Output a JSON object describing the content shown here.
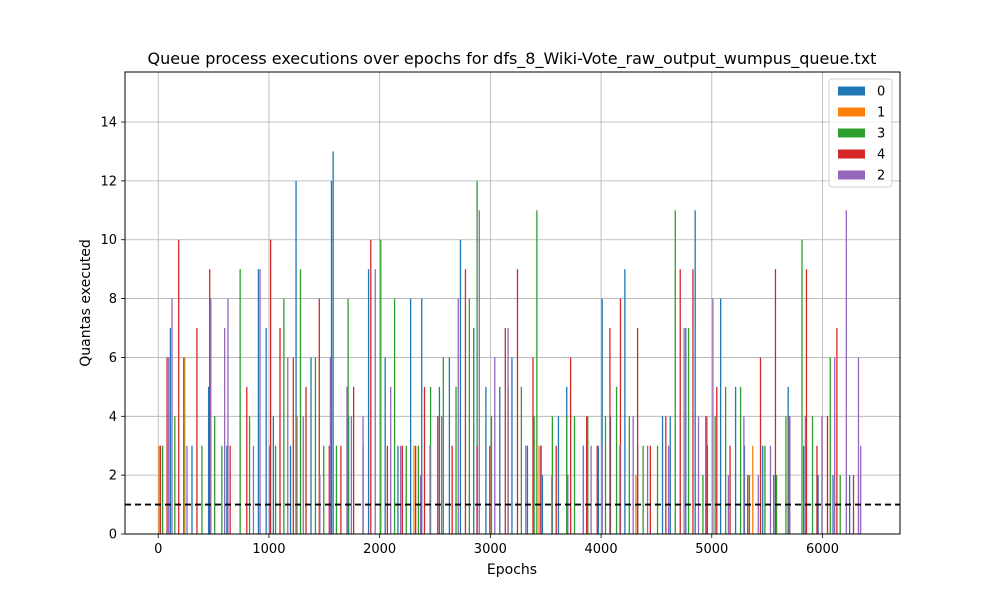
{
  "chart_data": {
    "type": "bar",
    "title": "Queue process executions over epochs for dfs_8_Wiki-Vote_raw_output_wumpus_queue.txt",
    "xlabel": "Epochs",
    "ylabel": "Quantas executed",
    "xlim": [
      -300,
      6700
    ],
    "ylim": [
      0,
      15.7
    ],
    "xticks": [
      0,
      1000,
      2000,
      3000,
      4000,
      5000,
      6000
    ],
    "yticks": [
      0,
      2,
      4,
      6,
      8,
      10,
      12,
      14
    ],
    "grid": true,
    "legend_position": "top-right",
    "reference_line": {
      "y": 1,
      "style": "dashed",
      "color": "#000000"
    },
    "series": [
      {
        "name": "0",
        "color": "#1f77b4",
        "points": [
          [
            110,
            7
          ],
          [
            305,
            3
          ],
          [
            455,
            5
          ],
          [
            620,
            3
          ],
          [
            905,
            9
          ],
          [
            975,
            7
          ],
          [
            1040,
            4
          ],
          [
            1195,
            3
          ],
          [
            1245,
            12
          ],
          [
            1380,
            6
          ],
          [
            1565,
            12
          ],
          [
            1580,
            13
          ],
          [
            1720,
            4
          ],
          [
            1900,
            9
          ],
          [
            2050,
            6
          ],
          [
            2165,
            3
          ],
          [
            2280,
            8
          ],
          [
            2380,
            8
          ],
          [
            2540,
            5
          ],
          [
            2630,
            6
          ],
          [
            2730,
            10
          ],
          [
            2850,
            7
          ],
          [
            2960,
            5
          ],
          [
            3085,
            5
          ],
          [
            3195,
            6
          ],
          [
            3335,
            3
          ],
          [
            3470,
            2
          ],
          [
            3615,
            4
          ],
          [
            3690,
            5
          ],
          [
            3840,
            3
          ],
          [
            3975,
            3
          ],
          [
            4010,
            8
          ],
          [
            4085,
            4
          ],
          [
            4215,
            9
          ],
          [
            4330,
            3
          ],
          [
            4555,
            4
          ],
          [
            4625,
            4
          ],
          [
            4765,
            7
          ],
          [
            4850,
            11
          ],
          [
            4960,
            3
          ],
          [
            5080,
            8
          ],
          [
            5215,
            5
          ],
          [
            5295,
            3
          ],
          [
            5460,
            3
          ],
          [
            5560,
            2
          ],
          [
            5690,
            5
          ],
          [
            5830,
            3
          ],
          [
            5960,
            2
          ],
          [
            6095,
            2
          ],
          [
            6245,
            2
          ]
        ]
      },
      {
        "name": "1",
        "color": "#ff7f0e",
        "points": [
          [
            8,
            3
          ],
          [
            240,
            6
          ],
          [
            1255,
            4
          ],
          [
            2310,
            3
          ],
          [
            3440,
            3
          ],
          [
            4315,
            2
          ],
          [
            5370,
            3
          ],
          [
            6325,
            2
          ]
        ]
      },
      {
        "name": "3",
        "color": "#2ca02c",
        "points": [
          [
            40,
            3
          ],
          [
            150,
            4
          ],
          [
            230,
            6
          ],
          [
            395,
            3
          ],
          [
            510,
            4
          ],
          [
            575,
            3
          ],
          [
            740,
            9
          ],
          [
            825,
            4
          ],
          [
            1060,
            3
          ],
          [
            1135,
            8
          ],
          [
            1285,
            9
          ],
          [
            1420,
            6
          ],
          [
            1495,
            3
          ],
          [
            1610,
            3
          ],
          [
            1715,
            8
          ],
          [
            1850,
            3
          ],
          [
            2010,
            10
          ],
          [
            2135,
            8
          ],
          [
            2240,
            3
          ],
          [
            2350,
            3
          ],
          [
            2460,
            5
          ],
          [
            2575,
            6
          ],
          [
            2690,
            5
          ],
          [
            2810,
            8
          ],
          [
            2880,
            12
          ],
          [
            3010,
            4
          ],
          [
            3160,
            5
          ],
          [
            3280,
            5
          ],
          [
            3395,
            4
          ],
          [
            3420,
            11
          ],
          [
            3560,
            4
          ],
          [
            3690,
            4
          ],
          [
            3760,
            4
          ],
          [
            3880,
            4
          ],
          [
            4040,
            4
          ],
          [
            4140,
            5
          ],
          [
            4255,
            4
          ],
          [
            4380,
            3
          ],
          [
            4510,
            3
          ],
          [
            4670,
            11
          ],
          [
            4790,
            7
          ],
          [
            4920,
            2
          ],
          [
            5030,
            4
          ],
          [
            5125,
            5
          ],
          [
            5260,
            5
          ],
          [
            5340,
            2
          ],
          [
            5480,
            3
          ],
          [
            5585,
            2
          ],
          [
            5670,
            4
          ],
          [
            5815,
            10
          ],
          [
            5910,
            4
          ],
          [
            6070,
            6
          ],
          [
            6160,
            2
          ]
        ]
      },
      {
        "name": "4",
        "color": "#d62728",
        "points": [
          [
            20,
            3
          ],
          [
            80,
            6
          ],
          [
            185,
            10
          ],
          [
            350,
            7
          ],
          [
            465,
            9
          ],
          [
            650,
            3
          ],
          [
            800,
            5
          ],
          [
            1015,
            10
          ],
          [
            1100,
            7
          ],
          [
            1220,
            6
          ],
          [
            1335,
            5
          ],
          [
            1455,
            8
          ],
          [
            1545,
            3
          ],
          [
            1650,
            3
          ],
          [
            1765,
            5
          ],
          [
            1920,
            10
          ],
          [
            2070,
            3
          ],
          [
            2205,
            3
          ],
          [
            2325,
            3
          ],
          [
            2405,
            5
          ],
          [
            2525,
            4
          ],
          [
            2655,
            3
          ],
          [
            2775,
            9
          ],
          [
            2880,
            3
          ],
          [
            2995,
            3
          ],
          [
            3135,
            7
          ],
          [
            3245,
            9
          ],
          [
            3385,
            6
          ],
          [
            3455,
            3
          ],
          [
            3595,
            3
          ],
          [
            3725,
            6
          ],
          [
            3870,
            4
          ],
          [
            3965,
            3
          ],
          [
            4080,
            7
          ],
          [
            4175,
            8
          ],
          [
            4330,
            7
          ],
          [
            4445,
            3
          ],
          [
            4585,
            4
          ],
          [
            4715,
            9
          ],
          [
            4830,
            9
          ],
          [
            4955,
            4
          ],
          [
            5045,
            5
          ],
          [
            5165,
            3
          ],
          [
            5325,
            2
          ],
          [
            5440,
            6
          ],
          [
            5575,
            9
          ],
          [
            5700,
            4
          ],
          [
            5855,
            9
          ],
          [
            5950,
            3
          ],
          [
            6045,
            4
          ],
          [
            6130,
            7
          ],
          [
            6280,
            2
          ]
        ]
      },
      {
        "name": "2",
        "color": "#9467bd",
        "points": [
          [
            95,
            6
          ],
          [
            125,
            8
          ],
          [
            260,
            3
          ],
          [
            475,
            8
          ],
          [
            600,
            7
          ],
          [
            630,
            8
          ],
          [
            860,
            3
          ],
          [
            920,
            9
          ],
          [
            1005,
            3
          ],
          [
            1170,
            6
          ],
          [
            1310,
            4
          ],
          [
            1460,
            2
          ],
          [
            1555,
            6
          ],
          [
            1705,
            5
          ],
          [
            1745,
            4
          ],
          [
            1850,
            4
          ],
          [
            1960,
            9
          ],
          [
            2100,
            5
          ],
          [
            2190,
            3
          ],
          [
            2370,
            2
          ],
          [
            2455,
            3
          ],
          [
            2560,
            4
          ],
          [
            2710,
            8
          ],
          [
            2900,
            11
          ],
          [
            3040,
            6
          ],
          [
            3160,
            7
          ],
          [
            3320,
            3
          ],
          [
            3460,
            3
          ],
          [
            3555,
            2
          ],
          [
            3700,
            2
          ],
          [
            3840,
            3
          ],
          [
            3910,
            3
          ],
          [
            4010,
            3
          ],
          [
            4170,
            3
          ],
          [
            4290,
            4
          ],
          [
            4420,
            3
          ],
          [
            4610,
            3
          ],
          [
            4750,
            7
          ],
          [
            4880,
            4
          ],
          [
            4945,
            4
          ],
          [
            5010,
            8
          ],
          [
            5150,
            2
          ],
          [
            5290,
            4
          ],
          [
            5420,
            2
          ],
          [
            5530,
            3
          ],
          [
            5705,
            4
          ],
          [
            5845,
            4
          ],
          [
            5995,
            4
          ],
          [
            6110,
            6
          ],
          [
            6215,
            11
          ],
          [
            6325,
            6
          ],
          [
            6345,
            3
          ]
        ]
      }
    ]
  }
}
